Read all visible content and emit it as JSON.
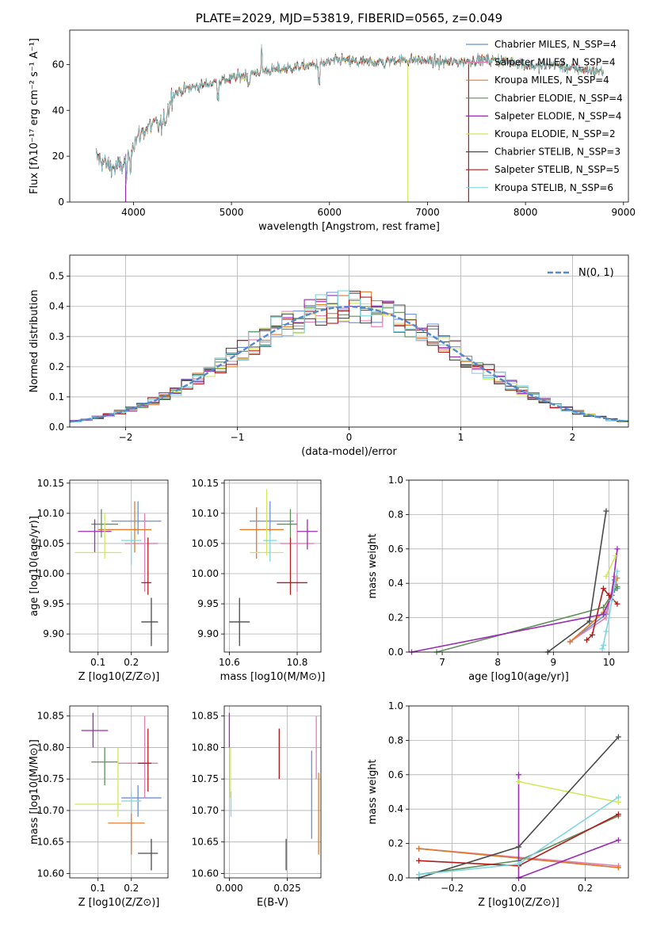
{
  "chart_data": [
    {
      "id": "spectrum",
      "type": "line",
      "title": "PLATE=2029, MJD=53819, FIBERID=0565, z=0.049",
      "xlabel": "wavelength [Angstrom, rest frame]",
      "ylabel": "Flux [fλ10⁻¹⁷ erg cm⁻² s⁻¹ A⁻¹]",
      "xlim": [
        3350,
        9050
      ],
      "ylim": [
        0,
        75
      ],
      "xticks": [
        4000,
        5000,
        6000,
        7000,
        8000,
        9000
      ],
      "yticks": [
        0,
        20,
        40,
        60
      ],
      "grid": false,
      "legend_position": "top-right",
      "series": [
        {
          "name": "Chabrier MILES, N_SSP=4",
          "color": "#6a8fd6"
        },
        {
          "name": "Salpeter MILES, N_SSP=4",
          "color": "#e07fb3"
        },
        {
          "name": "Kroupa MILES, N_SSP=4",
          "color": "#e07b28"
        },
        {
          "name": "Chabrier ELODIE, N_SSP=4",
          "color": "#5e8f5a"
        },
        {
          "name": "Salpeter ELODIE, N_SSP=4",
          "color": "#9a2bb5"
        },
        {
          "name": "Kroupa ELODIE, N_SSP=2",
          "color": "#d2e85a"
        },
        {
          "name": "Chabrier STELIB, N_SSP=3",
          "color": "#4a4a4a"
        },
        {
          "name": "Salpeter STELIB, N_SSP=5",
          "color": "#b01c1c"
        },
        {
          "name": "Kroupa STELIB, N_SSP=6",
          "color": "#7fd6e0"
        }
      ],
      "continuum": {
        "x": [
          3620,
          3700,
          3800,
          3900,
          4000,
          4100,
          4200,
          4300,
          4400,
          4500,
          4700,
          4900,
          5100,
          5300,
          5500,
          5700,
          5900,
          6100,
          6300,
          6500,
          6700,
          6900,
          7100,
          7300,
          7500,
          7700,
          7900,
          8100,
          8300,
          8500,
          8800
        ],
        "y": [
          20,
          17,
          15,
          16,
          26,
          31,
          34,
          33,
          47,
          49,
          51,
          53,
          55,
          57,
          58,
          59,
          60,
          62,
          61,
          61,
          62,
          62,
          61,
          61,
          62,
          62,
          61,
          59,
          60,
          58,
          57
        ]
      },
      "cutoffs": [
        {
          "series": "Salpeter ELODIE, N_SSP=4",
          "x": 3920
        },
        {
          "series": "Kroupa ELODIE, N_SSP=2",
          "x": 6800
        },
        {
          "series": "Salpeter STELIB, N_SSP=5",
          "x": 7420
        }
      ]
    },
    {
      "id": "residuals",
      "type": "line",
      "xlabel": "(data-model)/error",
      "ylabel": "Normed distribution",
      "xlim": [
        -2.5,
        2.5
      ],
      "ylim": [
        0,
        0.57
      ],
      "xticks": [
        -2,
        -1,
        0,
        1,
        2
      ],
      "yticks": [
        0.0,
        0.1,
        0.2,
        0.3,
        0.4,
        0.5
      ],
      "grid": true,
      "legend_position": "top-right",
      "reference_curve": {
        "name": "N(0, 1)",
        "color": "#5588cc",
        "style": "dashed"
      }
    },
    {
      "id": "age-vs-Z",
      "type": "scatter",
      "xlabel": "Z [log10(Z/Z⊙)]",
      "ylabel": "age [log10(age/yr)]",
      "xlim": [
        0.015,
        0.31
      ],
      "ylim": [
        9.87,
        10.155
      ],
      "xticks": [
        0.1,
        0.2
      ],
      "yticks": [
        9.9,
        9.95,
        10.0,
        10.05,
        10.1,
        10.15
      ],
      "grid": true,
      "points": [
        {
          "x": 0.22,
          "y": 10.087,
          "xerr": [
            0.14,
            0.29
          ],
          "yerr": [
            10.065,
            10.12
          ],
          "color": "#6a8fd6"
        },
        {
          "x": 0.24,
          "y": 10.05,
          "xerr": [
            0.18,
            0.28
          ],
          "yerr": [
            9.97,
            10.1
          ],
          "color": "#e07fb3"
        },
        {
          "x": 0.21,
          "y": 10.073,
          "xerr": [
            0.1,
            0.26
          ],
          "yerr": [
            10.035,
            10.12
          ],
          "color": "#e07b28"
        },
        {
          "x": 0.11,
          "y": 10.082,
          "xerr": [
            0.08,
            0.16
          ],
          "yerr": [
            10.06,
            10.107
          ],
          "color": "#5e8f5a"
        },
        {
          "x": 0.09,
          "y": 10.07,
          "xerr": [
            0.04,
            0.14
          ],
          "yerr": [
            10.035,
            10.09
          ],
          "color": "#9a2bb5"
        },
        {
          "x": 0.12,
          "y": 10.035,
          "xerr": [
            0.03,
            0.17
          ],
          "yerr": [
            10.025,
            10.1
          ],
          "color": "#d2e85a"
        },
        {
          "x": 0.26,
          "y": 9.92,
          "xerr": [
            0.23,
            0.28
          ],
          "yerr": [
            9.88,
            9.96
          ],
          "color": "#4a4a4a"
        },
        {
          "x": 0.25,
          "y": 9.985,
          "xerr": [
            0.23,
            0.26
          ],
          "yerr": [
            9.965,
            10.06
          ],
          "color": "#b01c1c"
        },
        {
          "x": 0.2,
          "y": 10.055,
          "xerr": [
            0.17,
            0.23
          ],
          "yerr": [
            10.015,
            10.07
          ],
          "color": "#7fd6e0"
        }
      ]
    },
    {
      "id": "age-vs-mass",
      "type": "scatter",
      "xlabel": "mass [log10(M/M⊙)]",
      "ylabel": "",
      "xlim": [
        10.585,
        10.87
      ],
      "ylim": [
        9.87,
        10.155
      ],
      "xticks": [
        10.6,
        10.8
      ],
      "yticks": [
        9.9,
        9.95,
        10.0,
        10.05,
        10.1,
        10.15
      ],
      "grid": true,
      "points": [
        {
          "x": 10.72,
          "y": 10.087,
          "xerr": [
            10.66,
            10.79
          ],
          "yerr": [
            10.065,
            10.12
          ],
          "color": "#6a8fd6"
        },
        {
          "x": 10.8,
          "y": 10.05,
          "xerr": [
            10.75,
            10.85
          ],
          "yerr": [
            9.97,
            10.1
          ],
          "color": "#e07fb3"
        },
        {
          "x": 10.68,
          "y": 10.073,
          "xerr": [
            10.63,
            10.76
          ],
          "yerr": [
            10.025,
            10.11
          ],
          "color": "#e07b28"
        },
        {
          "x": 10.78,
          "y": 10.082,
          "xerr": [
            10.74,
            10.8
          ],
          "yerr": [
            10.06,
            10.107
          ],
          "color": "#5e8f5a"
        },
        {
          "x": 10.83,
          "y": 10.07,
          "xerr": [
            10.8,
            10.86
          ],
          "yerr": [
            10.04,
            10.09
          ],
          "color": "#9a2bb5"
        },
        {
          "x": 10.71,
          "y": 10.035,
          "xerr": [
            10.66,
            10.76
          ],
          "yerr": [
            10.03,
            10.14
          ],
          "color": "#d2e85a"
        },
        {
          "x": 10.63,
          "y": 9.92,
          "xerr": [
            10.6,
            10.66
          ],
          "yerr": [
            9.88,
            9.96
          ],
          "color": "#4a4a4a"
        },
        {
          "x": 10.78,
          "y": 9.985,
          "xerr": [
            10.74,
            10.83
          ],
          "yerr": [
            9.965,
            10.06
          ],
          "color": "#b01c1c"
        },
        {
          "x": 10.72,
          "y": 10.055,
          "xerr": [
            10.7,
            10.74
          ],
          "yerr": [
            10.02,
            10.07
          ],
          "color": "#7fd6e0"
        }
      ]
    },
    {
      "id": "weight-vs-age",
      "type": "line",
      "xlabel": "age [log10(age/yr)]",
      "ylabel": "mass weight",
      "xlim": [
        6.4,
        10.35
      ],
      "ylim": [
        0,
        1.0
      ],
      "xticks": [
        7,
        8,
        9,
        10
      ],
      "yticks": [
        0.0,
        0.2,
        0.4,
        0.6,
        0.8,
        1.0
      ],
      "grid": true,
      "series": [
        {
          "color": "#6a8fd6",
          "points": [
            [
              9.3,
              0.06
            ],
            [
              9.95,
              0.22
            ],
            [
              10.1,
              0.42
            ],
            [
              10.15,
              0.37
            ]
          ]
        },
        {
          "color": "#e07fb3",
          "points": [
            [
              9.3,
              0.06
            ],
            [
              9.95,
              0.2
            ],
            [
              10.1,
              0.44
            ],
            [
              10.15,
              0.38
            ]
          ]
        },
        {
          "color": "#e07b28",
          "points": [
            [
              9.3,
              0.06
            ],
            [
              9.9,
              0.23
            ],
            [
              10.05,
              0.33
            ],
            [
              10.15,
              0.43
            ]
          ]
        },
        {
          "color": "#5e8f5a",
          "points": [
            [
              6.9,
              0.0
            ],
            [
              9.9,
              0.26
            ],
            [
              10.1,
              0.36
            ],
            [
              10.15,
              0.38
            ]
          ]
        },
        {
          "color": "#9a2bb5",
          "points": [
            [
              6.45,
              0.0
            ],
            [
              9.9,
              0.22
            ],
            [
              10.05,
              0.33
            ],
            [
              10.15,
              0.6
            ]
          ]
        },
        {
          "color": "#d2e85a",
          "points": [
            [
              9.95,
              0.44
            ],
            [
              10.12,
              0.56
            ]
          ]
        },
        {
          "color": "#4a4a4a",
          "points": [
            [
              8.9,
              0.0
            ],
            [
              9.65,
              0.18
            ],
            [
              9.95,
              0.82
            ]
          ]
        },
        {
          "color": "#b01c1c",
          "points": [
            [
              9.6,
              0.07
            ],
            [
              9.7,
              0.1
            ],
            [
              9.9,
              0.37
            ],
            [
              10.0,
              0.33
            ],
            [
              10.15,
              0.28
            ]
          ]
        },
        {
          "color": "#7fd6e0",
          "points": [
            [
              9.88,
              0.02
            ],
            [
              9.9,
              0.04
            ],
            [
              9.95,
              0.12
            ],
            [
              10.0,
              0.2
            ],
            [
              10.05,
              0.3
            ],
            [
              10.15,
              0.47
            ]
          ]
        }
      ]
    },
    {
      "id": "mass-vs-Z",
      "type": "scatter",
      "xlabel": "Z [log10(Z/Z⊙)]",
      "ylabel": "mass [log10(M/M⊙)]",
      "xlim": [
        0.015,
        0.31
      ],
      "ylim": [
        10.593,
        10.866
      ],
      "xticks": [
        0.1,
        0.2
      ],
      "yticks": [
        10.6,
        10.65,
        10.7,
        10.75,
        10.8,
        10.85
      ],
      "grid": true,
      "points": [
        {
          "x": 0.22,
          "y": 10.72,
          "xerr": [
            0.17,
            0.29
          ],
          "yerr": [
            10.69,
            10.74
          ],
          "color": "#6a8fd6"
        },
        {
          "x": 0.24,
          "y": 10.775,
          "xerr": [
            0.16,
            0.28
          ],
          "yerr": [
            10.72,
            10.85
          ],
          "color": "#e07fb3"
        },
        {
          "x": 0.2,
          "y": 10.68,
          "xerr": [
            0.13,
            0.24
          ],
          "yerr": [
            10.63,
            10.7
          ],
          "color": "#e07b28"
        },
        {
          "x": 0.12,
          "y": 10.777,
          "xerr": [
            0.08,
            0.16
          ],
          "yerr": [
            10.74,
            10.8
          ],
          "color": "#5e8f5a"
        },
        {
          "x": 0.085,
          "y": 10.827,
          "xerr": [
            0.05,
            0.13
          ],
          "yerr": [
            10.8,
            10.855
          ],
          "color": "#9a2bb5"
        },
        {
          "x": 0.16,
          "y": 10.71,
          "xerr": [
            0.03,
            0.17
          ],
          "yerr": [
            10.69,
            10.8
          ],
          "color": "#d2e85a"
        },
        {
          "x": 0.26,
          "y": 10.632,
          "xerr": [
            0.22,
            0.28
          ],
          "yerr": [
            10.605,
            10.655
          ],
          "color": "#4a4a4a"
        },
        {
          "x": 0.25,
          "y": 10.775,
          "xerr": [
            0.22,
            0.26
          ],
          "yerr": [
            10.73,
            10.83
          ],
          "color": "#b01c1c"
        },
        {
          "x": 0.2,
          "y": 10.715,
          "xerr": [
            0.17,
            0.23
          ],
          "yerr": [
            10.695,
            10.73
          ],
          "color": "#7fd6e0"
        }
      ]
    },
    {
      "id": "mass-vs-EBV",
      "type": "scatter",
      "xlabel": "E(B-V)",
      "ylabel": "",
      "xlim": [
        -0.0022,
        0.0395
      ],
      "ylim": [
        10.593,
        10.866
      ],
      "xticks": [
        0.0,
        0.025
      ],
      "xticklabels": [
        "0.000",
        "0.025"
      ],
      "yticks": [
        10.6,
        10.65,
        10.7,
        10.75,
        10.8,
        10.85
      ],
      "grid": true,
      "points": [
        {
          "x": 0.0,
          "y": 10.83,
          "yerr": [
            10.8,
            10.855
          ],
          "color": "#9a2bb5"
        },
        {
          "x": 0.0005,
          "y": 10.75,
          "yerr": [
            10.72,
            10.8
          ],
          "color": "#d2e85a"
        },
        {
          "x": 0.0007,
          "y": 10.71,
          "yerr": [
            10.69,
            10.73
          ],
          "color": "#7fd6e0"
        },
        {
          "x": 0.0215,
          "y": 10.79,
          "yerr": [
            10.75,
            10.83
          ],
          "color": "#b01c1c"
        },
        {
          "x": 0.0245,
          "y": 10.63,
          "yerr": [
            10.605,
            10.655
          ],
          "color": "#4a4a4a"
        },
        {
          "x": 0.0355,
          "y": 10.725,
          "yerr": [
            10.655,
            10.795
          ],
          "color": "#6a8fd6"
        },
        {
          "x": 0.0375,
          "y": 10.8,
          "yerr": [
            10.75,
            10.85
          ],
          "color": "#e07fb3"
        },
        {
          "x": 0.0385,
          "y": 10.69,
          "yerr": [
            10.63,
            10.76
          ],
          "color": "#e07b28"
        }
      ]
    },
    {
      "id": "weight-vs-Z",
      "type": "line",
      "xlabel": "Z [log10(Z/Z⊙)]",
      "ylabel": "mass weight",
      "xlim": [
        -0.33,
        0.33
      ],
      "ylim": [
        0,
        1.0
      ],
      "xticks": [
        -0.2,
        0.0,
        0.2
      ],
      "yticks": [
        0.0,
        0.2,
        0.4,
        0.6,
        0.8,
        1.0
      ],
      "grid": true,
      "series": [
        {
          "color": "#6a8fd6",
          "points": [
            [
              -0.3,
              0.17
            ],
            [
              0.3,
              0.06
            ]
          ]
        },
        {
          "color": "#e07fb3",
          "points": [
            [
              -0.3,
              0.17
            ],
            [
              0.3,
              0.07
            ]
          ]
        },
        {
          "color": "#e07b28",
          "points": [
            [
              -0.3,
              0.17
            ],
            [
              0.3,
              0.06
            ]
          ]
        },
        {
          "color": "#5e8f5a",
          "points": [
            [
              -0.3,
              0.02
            ],
            [
              0.0,
              0.1
            ],
            [
              0.3,
              0.36
            ]
          ]
        },
        {
          "color": "#9a2bb5",
          "points": [
            [
              0.0,
              0.6
            ],
            [
              0.0,
              0.0
            ],
            [
              0.3,
              0.22
            ]
          ]
        },
        {
          "color": "#d2e85a",
          "points": [
            [
              0.0,
              0.56
            ],
            [
              0.3,
              0.44
            ]
          ]
        },
        {
          "color": "#4a4a4a",
          "points": [
            [
              -0.3,
              0.0
            ],
            [
              0.0,
              0.18
            ],
            [
              0.3,
              0.82
            ]
          ]
        },
        {
          "color": "#b01c1c",
          "points": [
            [
              -0.3,
              0.1
            ],
            [
              0.0,
              0.07
            ],
            [
              0.3,
              0.37
            ]
          ]
        },
        {
          "color": "#7fd6e0",
          "points": [
            [
              -0.3,
              0.02
            ],
            [
              0.0,
              0.08
            ],
            [
              0.3,
              0.47
            ]
          ]
        }
      ]
    }
  ]
}
